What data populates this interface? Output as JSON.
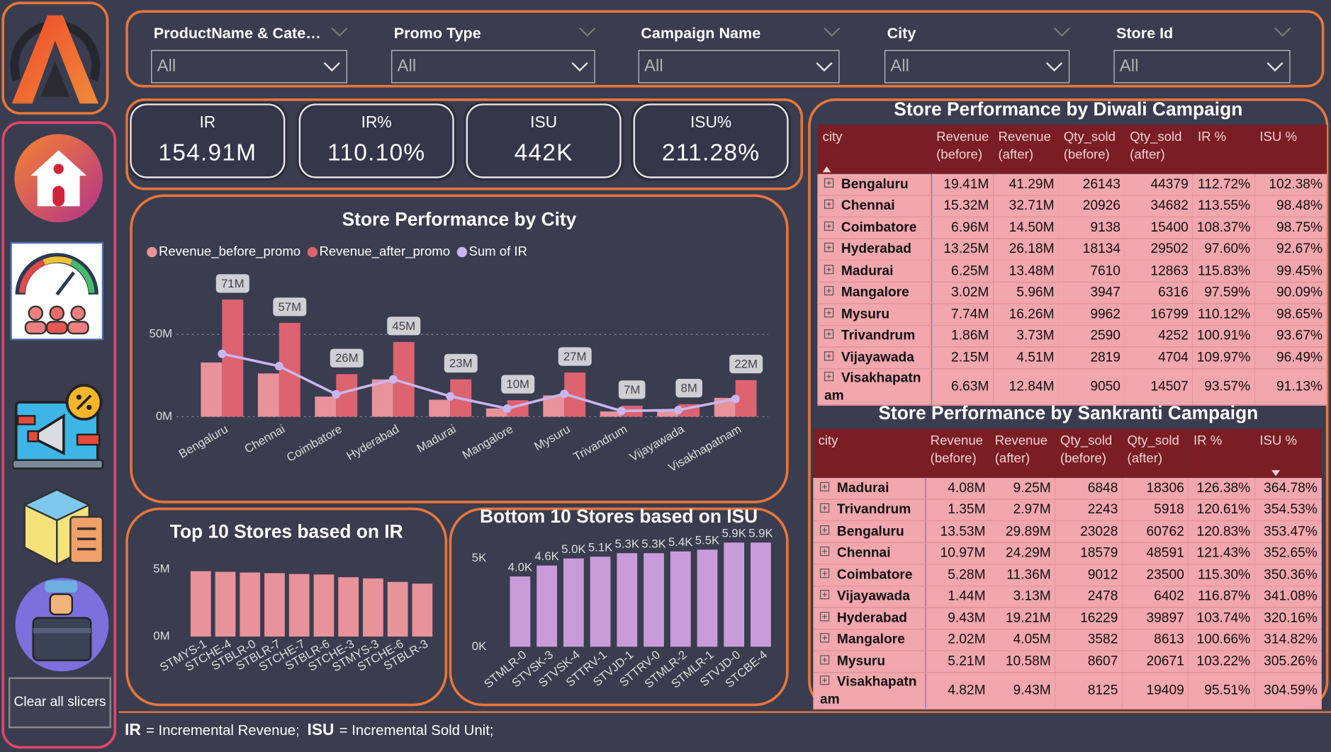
{
  "slicers": [
    {
      "label": "ProductName & Cate…",
      "value": "All"
    },
    {
      "label": "Promo Type",
      "value": "All"
    },
    {
      "label": "Campaign Name",
      "value": "All"
    },
    {
      "label": "City",
      "value": "All"
    },
    {
      "label": "Store Id",
      "value": "All"
    }
  ],
  "kpis": [
    {
      "label": "IR",
      "value": "154.91M"
    },
    {
      "label": "IR%",
      "value": "110.10%"
    },
    {
      "label": "ISU",
      "value": "442K"
    },
    {
      "label": "ISU%",
      "value": "211.28%"
    }
  ],
  "chart_data": [
    {
      "type": "combo",
      "title": "Store Performance by City",
      "legend": "top-left",
      "grid": true,
      "categories": [
        "Bengaluru",
        "Chennai",
        "Coimbatore",
        "Hyderabad",
        "Madurai",
        "Mangalore",
        "Mysuru",
        "Trivandrum",
        "Vijayawada",
        "Visakhapatnam"
      ],
      "series": [
        {
          "name": "Revenue_before_promo",
          "kind": "bar",
          "color": "#e8929b",
          "values": [
            32.94,
            26.29,
            12.24,
            22.68,
            10.33,
            5.04,
            12.95,
            3.21,
            3.59,
            11.45
          ]
        },
        {
          "name": "Revenue_after_promo",
          "kind": "bar",
          "color": "#dd6370",
          "values": [
            71.18,
            57.0,
            25.86,
            45.39,
            22.73,
            10.01,
            26.84,
            6.7,
            7.64,
            22.27
          ],
          "value_labels": [
            "71M",
            "57M",
            "26M",
            "45M",
            "23M",
            "10M",
            "27M",
            "7M",
            "8M",
            "22M"
          ]
        },
        {
          "name": "Sum of IR",
          "kind": "line",
          "color": "#c9b6ef",
          "values": [
            38.24,
            30.71,
            13.62,
            22.71,
            12.4,
            4.97,
            13.89,
            3.49,
            4.05,
            10.82
          ]
        }
      ],
      "ylim": [
        0,
        80
      ],
      "yticks": [
        {
          "value": 0,
          "label": "0M"
        },
        {
          "value": 50,
          "label": "50M"
        }
      ]
    },
    {
      "type": "bar",
      "title": "Top 10 Stores based on IR",
      "grid": false,
      "color": "#e8929b",
      "categories": [
        "STMYS-1",
        "STCHE-4",
        "STBLR-0",
        "STBLR-7",
        "STCHE-7",
        "STBLR-6",
        "STCHE-3",
        "STMYS-3",
        "STCHE-6",
        "STBLR-3"
      ],
      "values": [
        4.87,
        4.82,
        4.77,
        4.72,
        4.66,
        4.62,
        4.42,
        4.33,
        4.07,
        3.94
      ],
      "ylim": [
        0,
        5.5
      ],
      "yticks": [
        {
          "value": 0,
          "label": "0M"
        },
        {
          "value": 5,
          "label": "5M"
        }
      ]
    },
    {
      "type": "bar",
      "title": "Bottom 10 Stores based on ISU",
      "grid": false,
      "color": "#c99cd9",
      "categories": [
        "STMLR-0",
        "STVSK-3",
        "STVSK-4",
        "STTRV-1",
        "STVJD-1",
        "STTRV-0",
        "STMLR-2",
        "STMLR-1",
        "STVJD-0",
        "STCBE-4"
      ],
      "values": [
        3980,
        4600,
        5000,
        5100,
        5300,
        5300,
        5400,
        5500,
        5900,
        5900
      ],
      "value_labels": [
        "4.0K",
        "4.6K",
        "5.0K",
        "5.1K",
        "5.3K",
        "5.3K",
        "5.4K",
        "5.5K",
        "5.9K",
        "5.9K"
      ],
      "ylim": [
        0,
        6000
      ],
      "yticks": [
        {
          "value": 0,
          "label": "0K"
        },
        {
          "value": 5000,
          "label": "5K"
        }
      ]
    }
  ],
  "tables": [
    {
      "title": "Store Performance by Diwali Campaign",
      "columns": [
        "city",
        "Revenue (before)",
        "Revenue (after)",
        "Qty_sold (before)",
        "Qty_sold (after)",
        "IR %",
        "ISU %"
      ],
      "rows": [
        [
          "Bengaluru",
          "19.41M",
          "41.29M",
          "26143",
          "44379",
          "112.72%",
          "102.38%"
        ],
        [
          "Chennai",
          "15.32M",
          "32.71M",
          "20926",
          "34682",
          "113.55%",
          "98.48%"
        ],
        [
          "Coimbatore",
          "6.96M",
          "14.50M",
          "9138",
          "15400",
          "108.37%",
          "98.75%"
        ],
        [
          "Hyderabad",
          "13.25M",
          "26.18M",
          "18134",
          "29502",
          "97.60%",
          "92.67%"
        ],
        [
          "Madurai",
          "6.25M",
          "13.48M",
          "7610",
          "12863",
          "115.83%",
          "99.45%"
        ],
        [
          "Mangalore",
          "3.02M",
          "5.96M",
          "3947",
          "6316",
          "97.59%",
          "90.09%"
        ],
        [
          "Mysuru",
          "7.74M",
          "16.26M",
          "9962",
          "16799",
          "110.12%",
          "98.65%"
        ],
        [
          "Trivandrum",
          "1.86M",
          "3.73M",
          "2590",
          "4252",
          "100.91%",
          "93.67%"
        ],
        [
          "Vijayawada",
          "2.15M",
          "4.51M",
          "2819",
          "4704",
          "109.97%",
          "96.49%"
        ],
        [
          "Visakhapatnam",
          "6.63M",
          "12.84M",
          "9050",
          "14507",
          "93.57%",
          "91.13%"
        ]
      ]
    },
    {
      "title": "Store Performance by Sankranti Campaign",
      "columns": [
        "city",
        "Revenue (before)",
        "Revenue (after)",
        "Qty_sold (before)",
        "Qty_sold (after)",
        "IR %",
        "ISU %"
      ],
      "rows": [
        [
          "Madurai",
          "4.08M",
          "9.25M",
          "6848",
          "18306",
          "126.38%",
          "364.78%"
        ],
        [
          "Trivandrum",
          "1.35M",
          "2.97M",
          "2243",
          "5918",
          "120.61%",
          "354.53%"
        ],
        [
          "Bengaluru",
          "13.53M",
          "29.89M",
          "23028",
          "60762",
          "120.83%",
          "353.47%"
        ],
        [
          "Chennai",
          "10.97M",
          "24.29M",
          "18579",
          "48591",
          "121.43%",
          "352.65%"
        ],
        [
          "Coimbatore",
          "5.28M",
          "11.36M",
          "9012",
          "23500",
          "115.30%",
          "350.36%"
        ],
        [
          "Vijayawada",
          "1.44M",
          "3.13M",
          "2478",
          "6402",
          "116.87%",
          "341.08%"
        ],
        [
          "Hyderabad",
          "9.43M",
          "19.21M",
          "16229",
          "39897",
          "103.74%",
          "320.16%"
        ],
        [
          "Mangalore",
          "2.02M",
          "4.05M",
          "3582",
          "8613",
          "100.66%",
          "314.82%"
        ],
        [
          "Mysuru",
          "5.21M",
          "10.58M",
          "8607",
          "20671",
          "103.22%",
          "305.26%"
        ],
        [
          "Visakhapatnam",
          "4.82M",
          "9.43M",
          "8125",
          "19409",
          "95.51%",
          "304.59%"
        ]
      ]
    }
  ],
  "button": "Clear all slicers",
  "footer": [
    {
      "term": "IR",
      "definition": "= Incremental Revenue;"
    },
    {
      "term": "ISU",
      "definition": "= Incremental Sold Unit;"
    }
  ]
}
